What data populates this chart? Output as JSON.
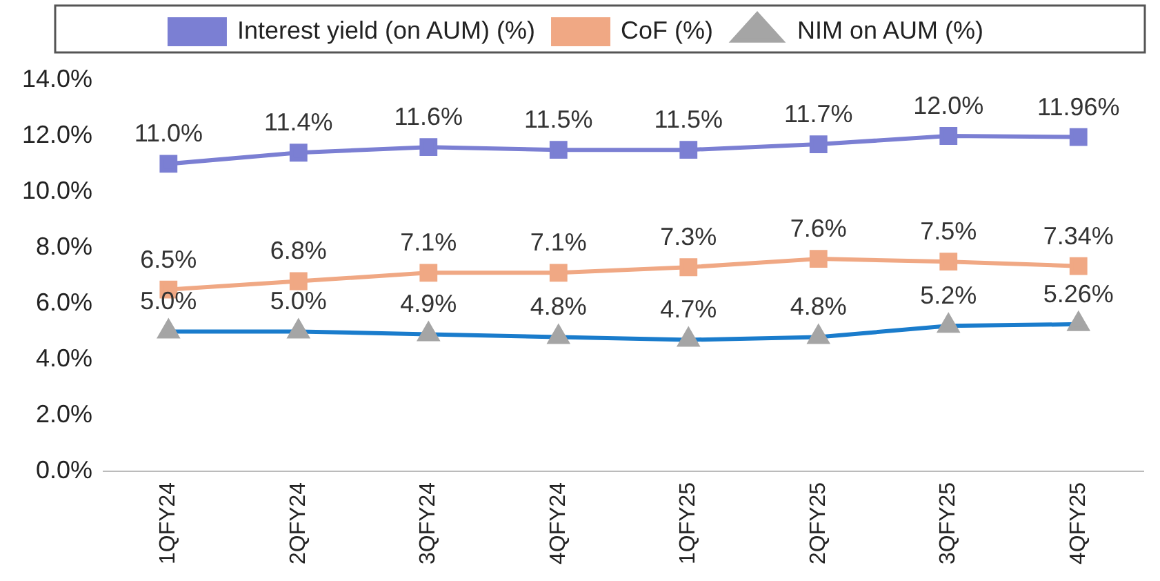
{
  "chart_data": {
    "type": "line",
    "categories": [
      "1QFY24",
      "2QFY24",
      "3QFY24",
      "4QFY24",
      "1QFY25",
      "2QFY25",
      "3QFY25",
      "4QFY25"
    ],
    "series": [
      {
        "name": "Interest yield (on AUM) (%)",
        "color": "#7b7fd3",
        "marker": "square",
        "values": [
          11.0,
          11.4,
          11.6,
          11.5,
          11.5,
          11.7,
          12.0,
          11.96
        ],
        "value_labels": [
          "11.0%",
          "11.4%",
          "11.6%",
          "11.5%",
          "11.5%",
          "11.7%",
          "12.0%",
          "11.96%"
        ]
      },
      {
        "name": "CoF (%)",
        "color": "#f0a884",
        "marker": "square",
        "values": [
          6.5,
          6.8,
          7.1,
          7.1,
          7.3,
          7.6,
          7.5,
          7.34
        ],
        "value_labels": [
          "6.5%",
          "6.8%",
          "7.1%",
          "7.1%",
          "7.3%",
          "7.6%",
          "7.5%",
          "7.34%"
        ]
      },
      {
        "name": "NIM on AUM (%)",
        "color": "#1a7ccc",
        "marker": "triangle",
        "colors": [
          "#a5a5a5",
          "#a5a5a5",
          "#a5a5a5",
          "#a5a5a5",
          "#a5a5a5",
          "#a5a5a5",
          "#a5a5a5",
          "#a5a5a5"
        ],
        "values": [
          5.0,
          5.0,
          4.9,
          4.8,
          4.7,
          4.8,
          5.2,
          5.26
        ],
        "value_labels": [
          "5.0%",
          "5.0%",
          "4.9%",
          "4.8%",
          "4.7%",
          "4.8%",
          "5.2%",
          "5.26%"
        ]
      }
    ],
    "ylim": [
      0,
      14
    ],
    "yticks": [
      {
        "value": 0,
        "label": "0.0%"
      },
      {
        "value": 2,
        "label": "2.0%"
      },
      {
        "value": 4,
        "label": "4.0%"
      },
      {
        "value": 6,
        "label": "6.0%"
      },
      {
        "value": 8,
        "label": "8.0%"
      },
      {
        "value": 10,
        "label": "10.0%"
      },
      {
        "value": 12,
        "label": "12.0%"
      },
      {
        "value": 14,
        "label": "14.0%"
      }
    ],
    "grid": false,
    "legend": "top",
    "line_style": "solid"
  }
}
